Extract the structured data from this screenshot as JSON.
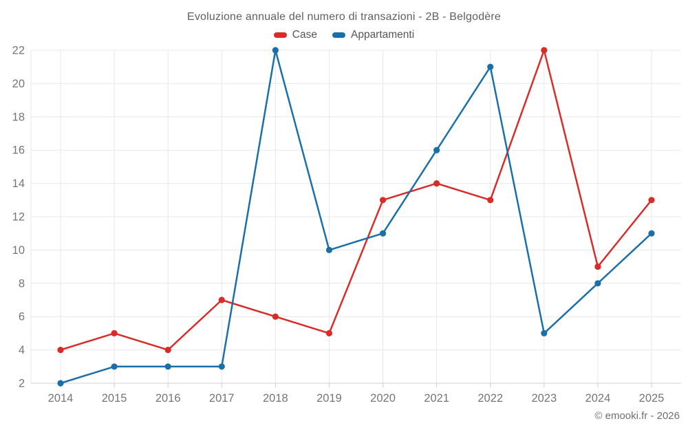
{
  "chart_data": {
    "type": "line",
    "title": "Evoluzione annuale del numero di transazioni - 2B - Belgodère",
    "categories": [
      "2014",
      "2015",
      "2016",
      "2017",
      "2018",
      "2019",
      "2020",
      "2021",
      "2022",
      "2023",
      "2024",
      "2025"
    ],
    "series": [
      {
        "name": "Case",
        "color": "#d92b28",
        "values": [
          4,
          5,
          4,
          7,
          6,
          5,
          13,
          14,
          13,
          22,
          9,
          13
        ]
      },
      {
        "name": "Appartamenti",
        "color": "#1a6fa8",
        "values": [
          2,
          3,
          3,
          3,
          22,
          10,
          11,
          16,
          21,
          5,
          8,
          11
        ]
      }
    ],
    "ylim": [
      2,
      22
    ],
    "ytick_step": 2,
    "grid": true,
    "legend_position": "top",
    "marker": "circle",
    "xlabel": "",
    "ylabel": ""
  },
  "footer": {
    "credit": "© emooki.fr - 2026"
  },
  "colors": {
    "gridline": "#e7e7e7",
    "axis_line": "#d2d2d2",
    "tick": "#cccccc",
    "title_text": "#5f5f5f",
    "axis_text": "#757575",
    "legend_text": "#565656",
    "footer_text": "#6f6f6f",
    "background": "#ffffff"
  }
}
